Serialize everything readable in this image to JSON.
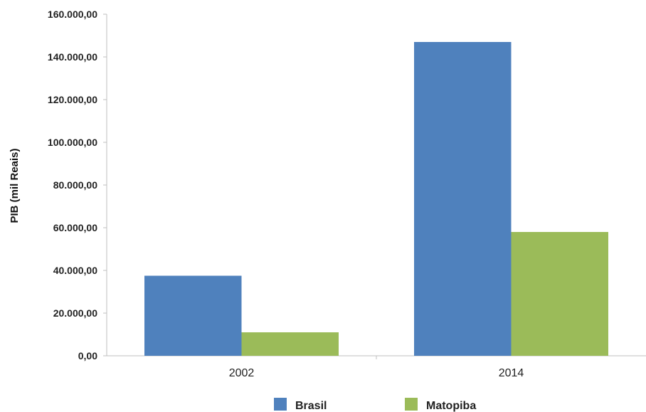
{
  "chart_data": {
    "type": "bar",
    "title": "",
    "xlabel": "",
    "ylabel": "PIB (mil Reais)",
    "categories": [
      "2002",
      "2014"
    ],
    "series": [
      {
        "name": "Brasil",
        "color": "#4f81bd",
        "values": [
          37500,
          147000
        ]
      },
      {
        "name": "Matopiba",
        "color": "#9bbb59",
        "values": [
          11000,
          58000
        ]
      }
    ],
    "ylim": [
      0,
      160000
    ],
    "yticks": [
      0,
      20000,
      40000,
      60000,
      80000,
      100000,
      120000,
      140000,
      160000
    ],
    "ytick_labels": [
      "0,00",
      "20.000,00",
      "40.000,00",
      "60.000,00",
      "80.000,00",
      "100.000,00",
      "120.000,00",
      "140.000,00",
      "160.000,00"
    ],
    "grid": false,
    "legend_position": "bottom",
    "axis_color": "#bfbfbf"
  }
}
